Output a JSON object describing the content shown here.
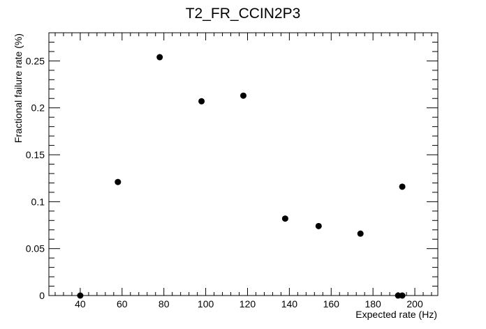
{
  "chart_data": {
    "type": "scatter",
    "title": "T2_FR_CCIN2P3",
    "xlabel": "Expected rate (Hz)",
    "ylabel": "Fractional failure rate (%)",
    "xlim": [
      25,
      211
    ],
    "ylim": [
      0,
      0.28
    ],
    "x_ticks": [
      40,
      60,
      80,
      100,
      120,
      140,
      160,
      180,
      200
    ],
    "y_ticks": [
      0,
      0.05,
      0.1,
      0.15,
      0.2,
      0.25
    ],
    "x_tick_labels": [
      "40",
      "60",
      "80",
      "100",
      "120",
      "140",
      "160",
      "180",
      "200"
    ],
    "y_tick_labels": [
      "0",
      "0.05",
      "0.1",
      "0.15",
      "0.2",
      "0.25"
    ],
    "grid": false,
    "series": [
      {
        "x": [
          40,
          58,
          78,
          98,
          118,
          138,
          154,
          174,
          192,
          194,
          194
        ],
        "y": [
          0,
          0.121,
          0.254,
          0.207,
          0.213,
          0.082,
          0.074,
          0.066,
          0,
          0,
          0.116
        ]
      }
    ],
    "colors": {
      "marker": "#000000",
      "axis": "#000000"
    }
  }
}
